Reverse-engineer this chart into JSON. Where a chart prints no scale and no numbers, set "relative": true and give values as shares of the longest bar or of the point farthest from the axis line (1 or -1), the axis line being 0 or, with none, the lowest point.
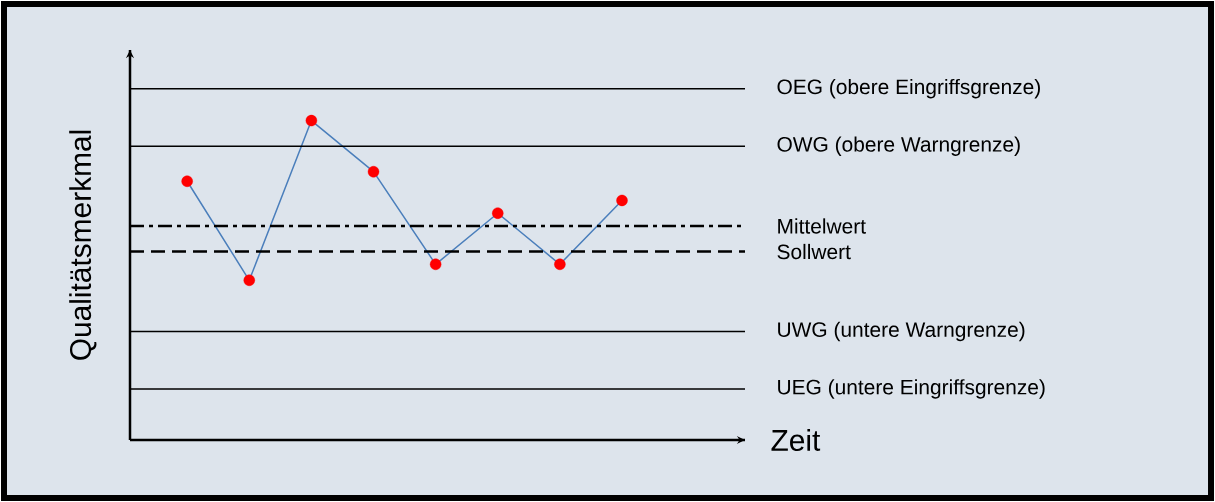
{
  "chart_data": {
    "type": "line",
    "relative": true,
    "ylabel": "Qualitätsmerkmal",
    "xlabel": "Zeit",
    "categories": [
      null,
      null,
      null,
      null,
      null,
      null,
      null,
      null
    ],
    "series": [
      {
        "color": "#4a7ebb",
        "marker": "circle",
        "colors": [
          "#ff0000",
          "#ff0000",
          "#ff0000",
          "#ff0000",
          "#ff0000",
          "#ff0000",
          "#ff0000",
          "#ff0000"
        ],
        "values": [
          0.81,
          0.5,
          1,
          0.84,
          0.55,
          0.71,
          0.55,
          0.75
        ]
      }
    ],
    "ref_lines": [
      {
        "axis": "y",
        "value": 1.1,
        "label": "OEG (obere Eingriffsgrenze)",
        "color": "#000000",
        "line_style": "solid"
      },
      {
        "axis": "y",
        "value": 0.92,
        "label": "OWG (obere Warngrenze)",
        "color": "#000000",
        "line_style": "solid"
      },
      {
        "axis": "y",
        "value": 0.67,
        "label": "Mittelwert",
        "color": "#000000",
        "line_style": "dashdot"
      },
      {
        "axis": "y",
        "value": 0.59,
        "label": "Sollwert",
        "color": "#000000",
        "line_style": "dashed"
      },
      {
        "axis": "y",
        "value": 0.34,
        "label": "UWG (untere Warngrenze)",
        "color": "#000000",
        "line_style": "solid"
      },
      {
        "axis": "y",
        "value": 0.16,
        "label": "UEG (untere Eingriffsgrenze)",
        "color": "#000000",
        "line_style": "solid"
      }
    ]
  }
}
